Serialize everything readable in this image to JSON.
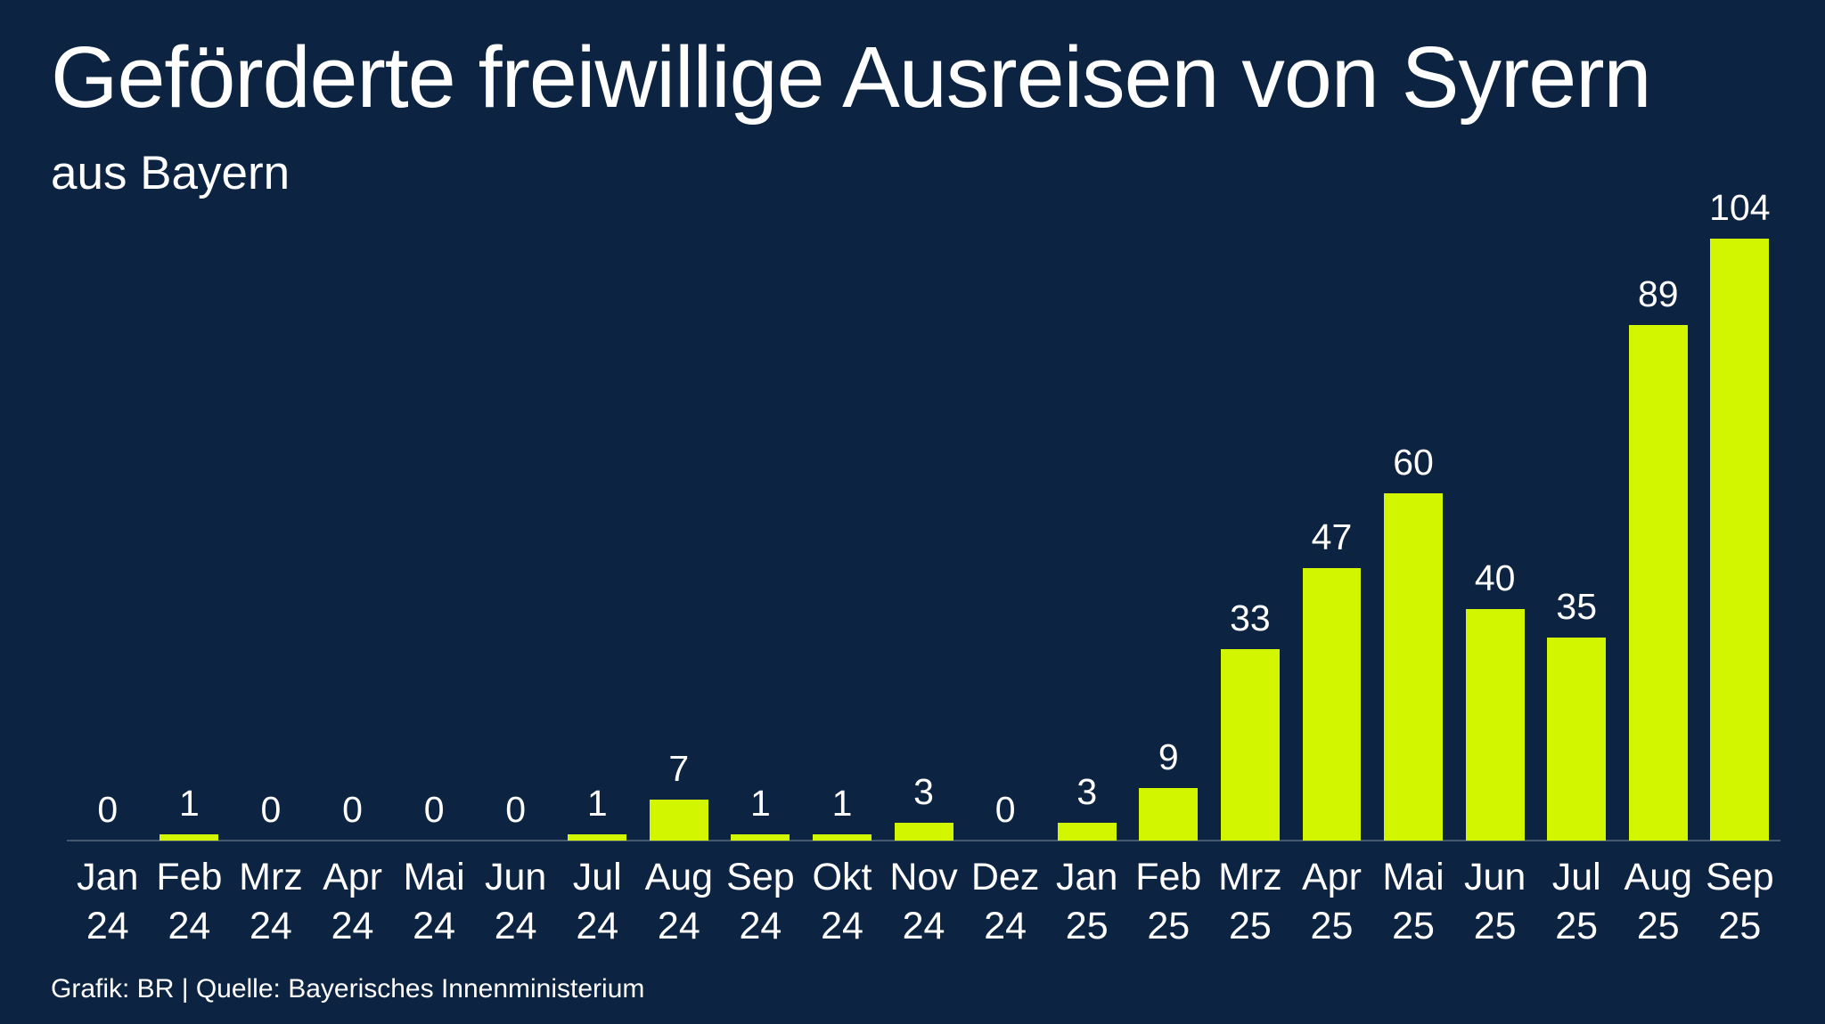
{
  "header": {
    "title": "Geförderte freiwillige Ausreisen von Syrern",
    "subtitle": "aus Bayern"
  },
  "footer": {
    "credit": "Grafik: BR | Quelle: Bayerisches Innenministerium"
  },
  "colors": {
    "background": "#0d2342",
    "bar": "#d2f500",
    "axis_line": "#46586e",
    "text": "#ffffff"
  },
  "chart_data": {
    "type": "bar",
    "title": "Geförderte freiwillige Ausreisen von Syrern aus Bayern",
    "categories": [
      "Jan 24",
      "Feb 24",
      "Mrz 24",
      "Apr 24",
      "Mai 24",
      "Jun 24",
      "Jul 24",
      "Aug 24",
      "Sep 24",
      "Okt 24",
      "Nov 24",
      "Dez 24",
      "Jan 25",
      "Feb 25",
      "Mrz 25",
      "Apr 25",
      "Mai 25",
      "Jun 25",
      "Jul 25",
      "Aug 25",
      "Sep 25"
    ],
    "values": [
      0,
      1,
      0,
      0,
      0,
      0,
      1,
      7,
      1,
      1,
      3,
      0,
      3,
      9,
      33,
      47,
      60,
      40,
      35,
      89,
      104
    ],
    "xlabel": "",
    "ylabel": "",
    "ylim": [
      0,
      104
    ],
    "data_labels": true,
    "grid": false,
    "legend": false,
    "bar_color": "#d2f500"
  }
}
